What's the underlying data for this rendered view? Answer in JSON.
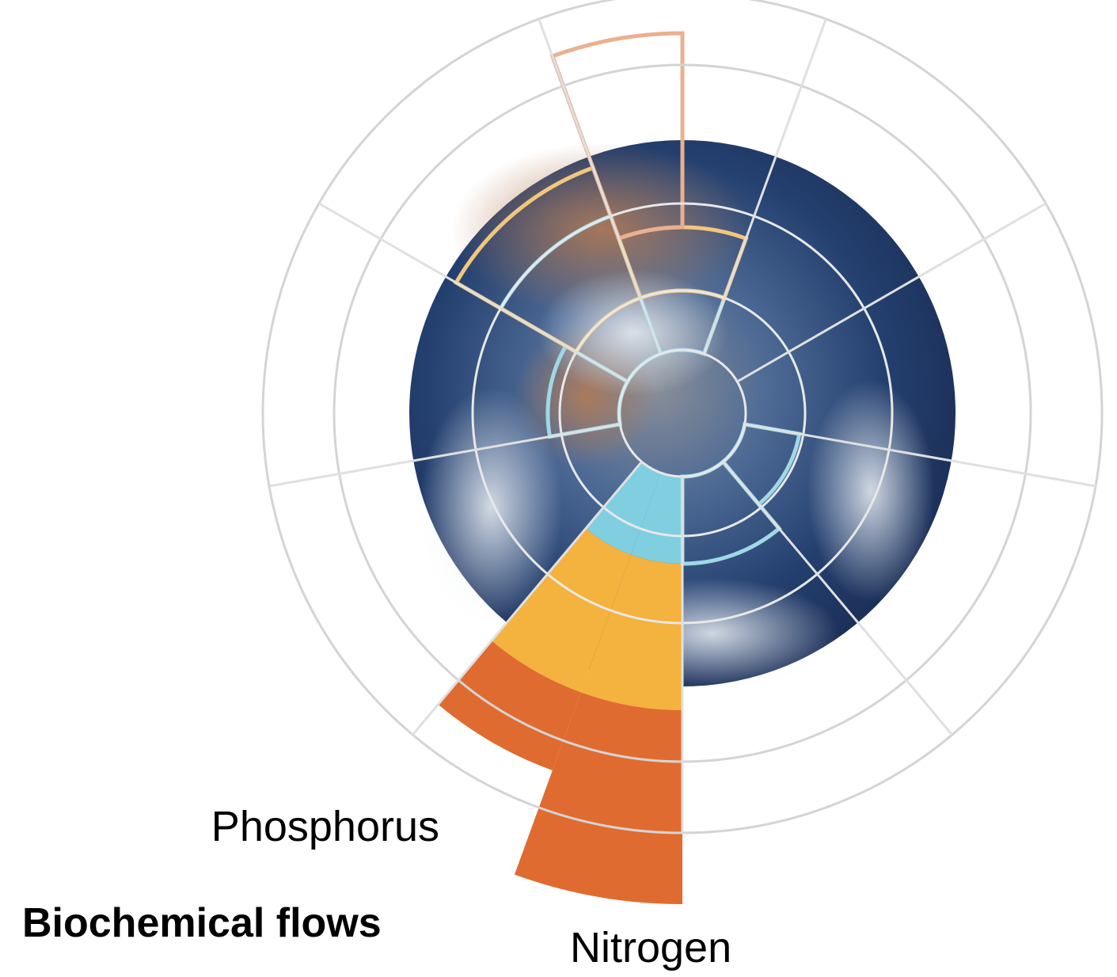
{
  "labels": {
    "phosphorus": "Phosphorus",
    "category": "Biochemical flows",
    "nitrogen": "Nitrogen"
  }
}
